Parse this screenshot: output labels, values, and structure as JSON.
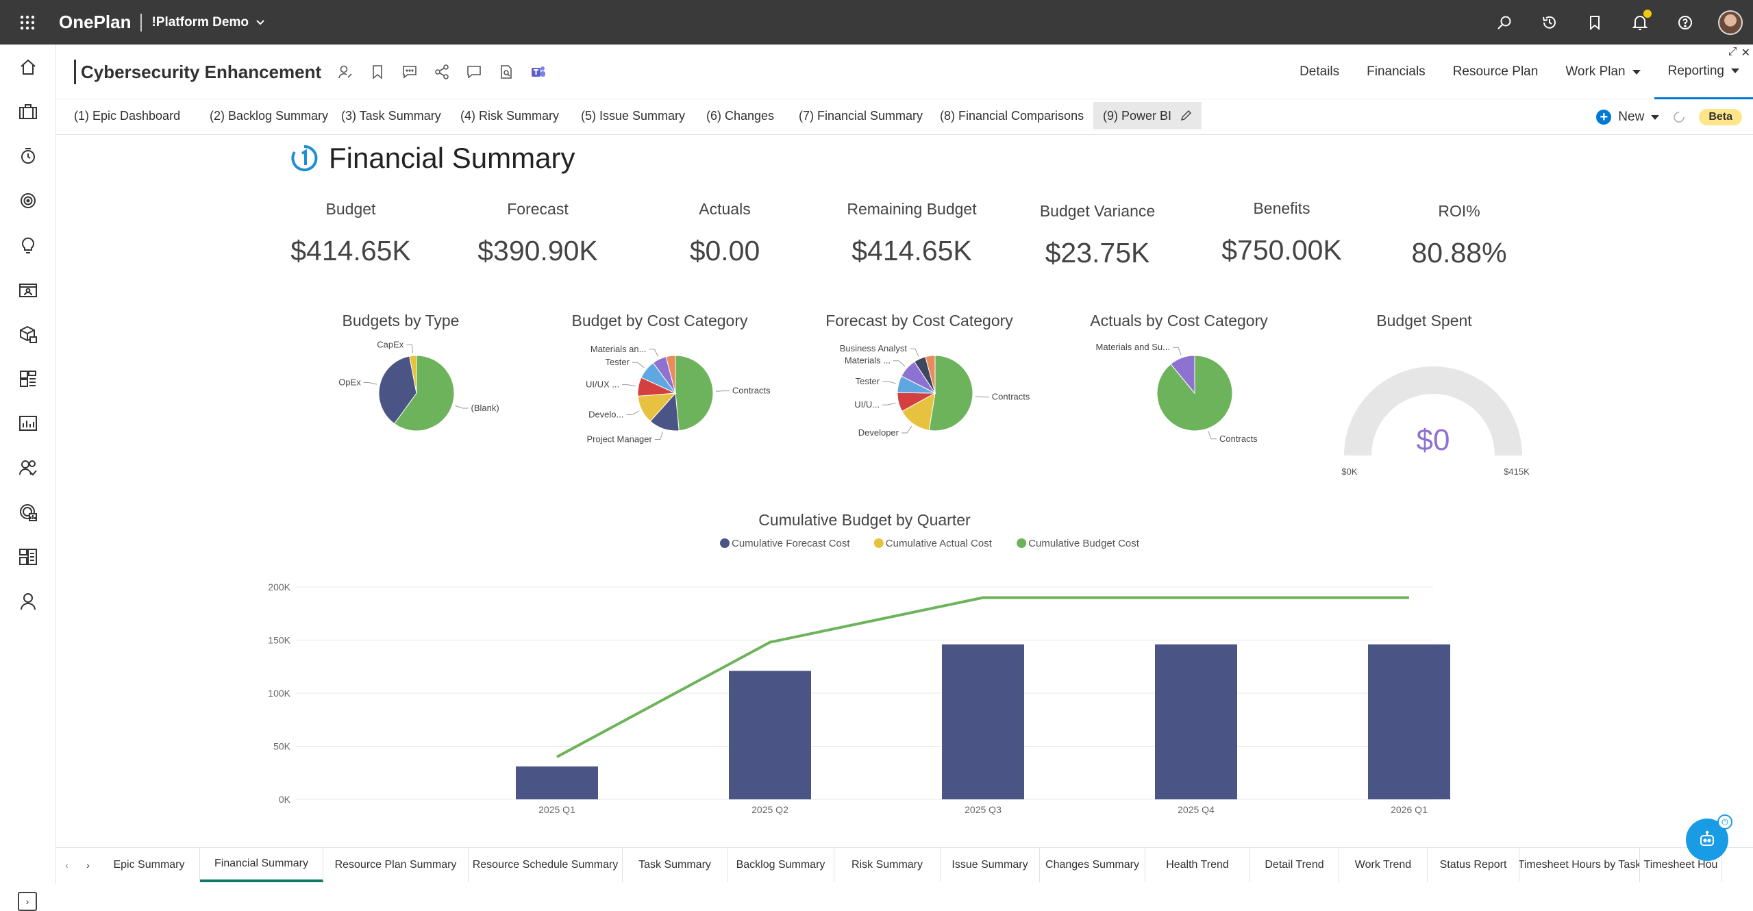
{
  "app": {
    "brand": "OnePlan",
    "tenant": "!Platform Demo"
  },
  "topbar": {
    "icons": [
      "search-icon",
      "history-icon",
      "bookmark-icon",
      "notification-icon",
      "help-icon",
      "avatar"
    ]
  },
  "leftnav": {
    "icons": [
      "home-icon",
      "portfolio-icon",
      "time-icon",
      "target-icon",
      "idea-icon",
      "contacts-icon",
      "package-icon",
      "dashboard-icon",
      "report-icon",
      "users-check-icon",
      "finance-icon",
      "layout-icon",
      "user-icon"
    ]
  },
  "header": {
    "project_title": "Cybersecurity Enhancement",
    "nav": [
      {
        "label": "Details"
      },
      {
        "label": "Financials"
      },
      {
        "label": "Resource Plan"
      },
      {
        "label": "Work Plan"
      },
      {
        "label": "Reporting"
      }
    ]
  },
  "report_tabs": [
    "(1) Epic Dashboard",
    "(2) Backlog Summary",
    "(3) Task Summary",
    "(4) Risk Summary",
    "(5) Issue Summary",
    "(6) Changes",
    "(7) Financial Summary",
    "(8) Financial Comparisons",
    "(9) Power BI"
  ],
  "tab_actions": {
    "new_label": "New",
    "beta_label": "Beta"
  },
  "report": {
    "title": "Financial Summary",
    "kpis": [
      {
        "label": "Budget",
        "value": "$414.65K"
      },
      {
        "label": "Forecast",
        "value": "$390.90K"
      },
      {
        "label": "Actuals",
        "value": "$0.00"
      },
      {
        "label": "Remaining Budget",
        "value": "$414.65K"
      },
      {
        "label": "Budget Variance",
        "value": "$23.75K"
      },
      {
        "label": "Benefits",
        "value": "$750.00K"
      },
      {
        "label": "ROI%",
        "value": "80.88%"
      }
    ],
    "pie_titles": [
      "Budgets by Type",
      "Budget by Cost Category",
      "Forecast by Cost Category",
      "Actuals by Cost Category"
    ],
    "gauge": {
      "title": "Budget Spent",
      "value_label": "$0",
      "min_label": "$0K",
      "max_label": "$415K"
    }
  },
  "colors": {
    "green": "#6db35b",
    "navy": "#4b5585",
    "yellow": "#e6c23e",
    "red": "#d44040",
    "blue": "#5ea7e0",
    "purple": "#8e72d1",
    "darkslate": "#3e4660",
    "orange": "#eb8a5a"
  },
  "chart_data": [
    {
      "type": "pie",
      "title": "Budgets by Type",
      "labels": [
        "(Blank)",
        "OpEx",
        "CapEx"
      ],
      "values": [
        60,
        37,
        3
      ],
      "colors": [
        "#6db35b",
        "#4b5585",
        "#e6c23e"
      ]
    },
    {
      "type": "pie",
      "title": "Budget by Cost Category",
      "labels": [
        "Contracts",
        "Project Manager",
        "Develo...",
        "UI/UX ...",
        "Tester",
        "Materials an...",
        ""
      ],
      "values": [
        48,
        13,
        12,
        8,
        8,
        6,
        4
      ],
      "colors": [
        "#6db35b",
        "#4b5585",
        "#e6c23e",
        "#d44040",
        "#5ea7e0",
        "#8e72d1",
        "#eb8a5a"
      ]
    },
    {
      "type": "pie",
      "title": "Forecast by Cost Category",
      "labels": [
        "Contracts",
        "Developer",
        "UI/U...",
        "Tester",
        "Materials ...",
        "Business Analyst",
        ""
      ],
      "values": [
        51,
        14,
        8,
        7,
        8,
        5,
        4
      ],
      "colors": [
        "#6db35b",
        "#e6c23e",
        "#d44040",
        "#5ea7e0",
        "#8e72d1",
        "#3e4660",
        "#eb8a5a"
      ]
    },
    {
      "type": "pie",
      "title": "Actuals by Cost Category",
      "labels": [
        "Contracts",
        "Materials and Su..."
      ],
      "values": [
        89,
        11
      ],
      "colors": [
        "#6db35b",
        "#8e72d1"
      ]
    },
    {
      "type": "bar",
      "title": "Cumulative Budget by Quarter",
      "categories": [
        "2025 Q1",
        "2025 Q2",
        "2025 Q3",
        "2025 Q4",
        "2026 Q1"
      ],
      "series": [
        {
          "name": "Cumulative Forecast Cost",
          "kind": "bar",
          "color": "#4b5585",
          "values": [
            31000,
            121000,
            146000,
            146000,
            146000
          ]
        },
        {
          "name": "Cumulative Actual Cost",
          "kind": "line",
          "color": "#e6c23e",
          "values": [
            0,
            0,
            0,
            0,
            0
          ]
        },
        {
          "name": "Cumulative Budget Cost",
          "kind": "line",
          "color": "#6db35b",
          "values": [
            40000,
            148000,
            190000,
            190000,
            190000
          ]
        }
      ],
      "ylim": [
        0,
        200000
      ],
      "yticks": [
        "0K",
        "50K",
        "100K",
        "150K",
        "200K"
      ],
      "legend": "top-center",
      "grid": true
    }
  ],
  "page_tabs": [
    "Epic Summary",
    "Financial Summary",
    "Resource Plan Summary",
    "Resource Schedule Summary",
    "Task Summary",
    "Backlog Summary",
    "Risk Summary",
    "Issue Summary",
    "Changes Summary",
    "Health Trend",
    "Detail Trend",
    "Work Trend",
    "Status Report",
    "Timesheet Hours by Task",
    "Timesheet Hou"
  ]
}
